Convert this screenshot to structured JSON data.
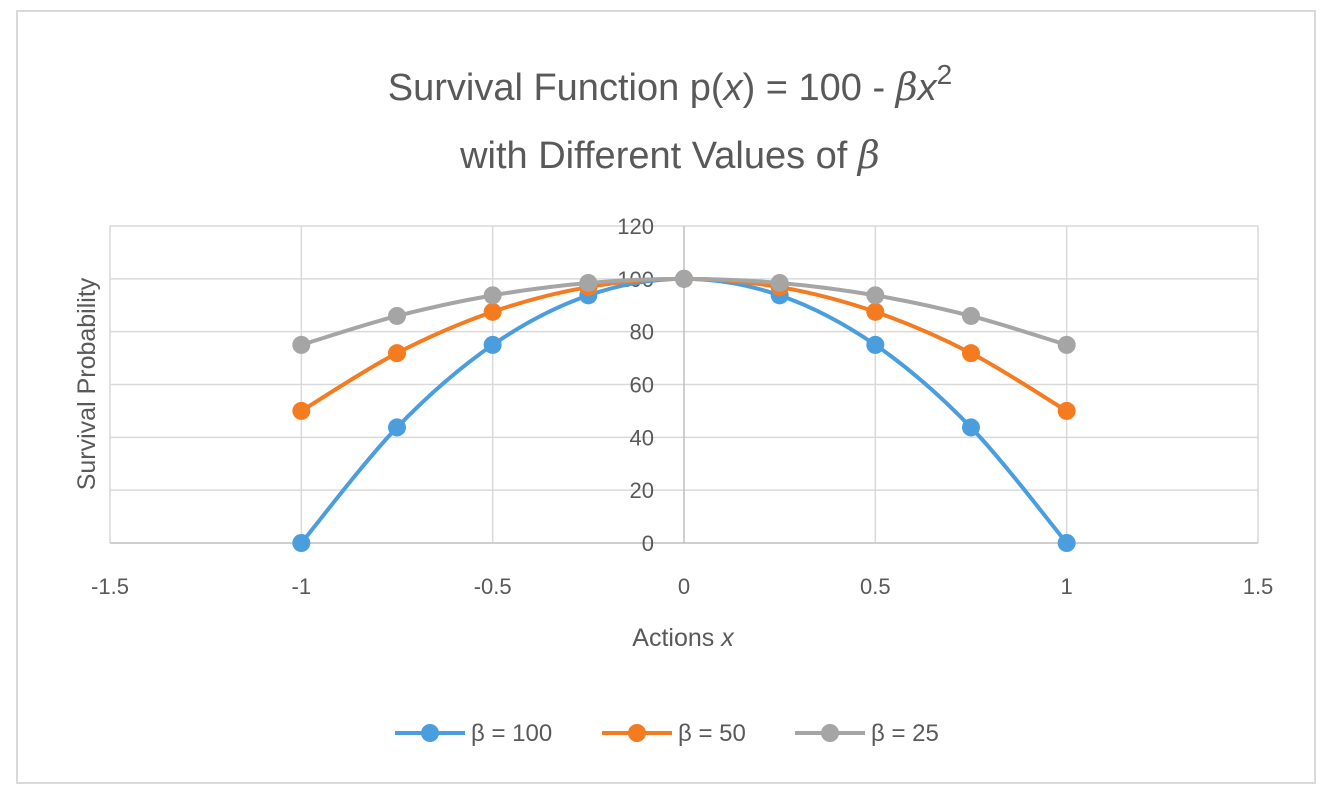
{
  "chart_data": {
    "type": "line",
    "title_line1_prefix": "Survival Function p(",
    "title_line1_var": "x",
    "title_line1_mid": ") = 100 - ",
    "title_line1_beta": "β",
    "title_line1_x": "x",
    "title_line1_sup": "2",
    "title_line2_prefix": "with Different Values of ",
    "title_line2_beta": "β",
    "xlabel_prefix": "Actions ",
    "xlabel_var": "x",
    "ylabel": "Survival Probability",
    "xlim": [
      -1.5,
      1.5
    ],
    "ylim": [
      0,
      120
    ],
    "x_ticks": [
      "-1.5",
      "-1",
      "-0.5",
      "0",
      "0.5",
      "1",
      "1.5"
    ],
    "y_ticks": [
      "0",
      "20",
      "40",
      "60",
      "80",
      "100",
      "120"
    ],
    "x": [
      -1,
      -0.75,
      -0.5,
      -0.25,
      0,
      0.25,
      0.5,
      0.75,
      1
    ],
    "grid": true,
    "legend_position": "bottom",
    "series": [
      {
        "name": "β = 100",
        "color": "#4a9ede",
        "values": [
          0,
          43.75,
          75,
          93.75,
          100,
          93.75,
          75,
          43.75,
          0
        ]
      },
      {
        "name": "β = 50",
        "color": "#f47b20",
        "values": [
          50,
          71.875,
          87.5,
          96.875,
          100,
          96.875,
          87.5,
          71.875,
          50
        ]
      },
      {
        "name": "β = 25",
        "color": "#a5a5a5",
        "values": [
          75,
          85.9375,
          93.75,
          98.4375,
          100,
          98.4375,
          93.75,
          85.9375,
          75
        ]
      }
    ]
  }
}
